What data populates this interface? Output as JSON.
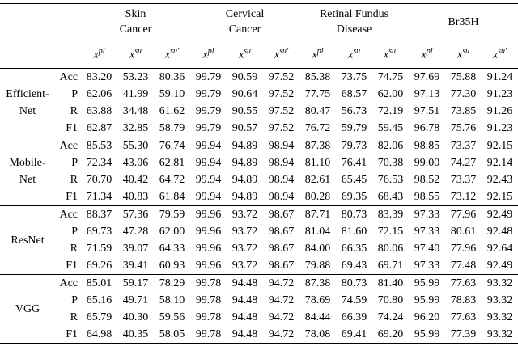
{
  "header": {
    "groups": [
      {
        "lines": [
          "Skin",
          "Cancer"
        ]
      },
      {
        "lines": [
          "Cervical",
          "Cancer"
        ]
      },
      {
        "lines": [
          "Retinal Fundus",
          "Disease"
        ]
      },
      {
        "lines": [
          "Br35H"
        ]
      }
    ],
    "sub": [
      {
        "base": "x",
        "sup": "pl"
      },
      {
        "base": "x",
        "sup": "su"
      },
      {
        "base": "x",
        "sup": "su′"
      }
    ]
  },
  "table": {
    "blocks": [
      {
        "model": [
          "Efficient-",
          "Net"
        ],
        "rows": [
          {
            "metric": "Acc",
            "values": [
              "83.20",
              "53.23",
              "80.36",
              "99.79",
              "90.59",
              "97.52",
              "85.38",
              "73.75",
              "74.75",
              "97.69",
              "75.88",
              "91.24"
            ]
          },
          {
            "metric": "P",
            "values": [
              "62.06",
              "41.99",
              "59.10",
              "99.79",
              "90.64",
              "97.52",
              "77.75",
              "68.57",
              "62.00",
              "97.13",
              "77.30",
              "91.23"
            ]
          },
          {
            "metric": "R",
            "values": [
              "63.88",
              "34.48",
              "61.62",
              "99.79",
              "90.55",
              "97.52",
              "80.47",
              "56.73",
              "72.19",
              "97.51",
              "73.85",
              "91.26"
            ]
          },
          {
            "metric": "F1",
            "values": [
              "62.87",
              "32.85",
              "58.79",
              "99.79",
              "90.57",
              "97.52",
              "76.72",
              "59.79",
              "59.45",
              "96.78",
              "75.76",
              "91.23"
            ]
          }
        ]
      },
      {
        "model": [
          "Mobile-",
          "Net"
        ],
        "rows": [
          {
            "metric": "Acc",
            "values": [
              "85.53",
              "55.30",
              "76.74",
              "99.94",
              "94.89",
              "98.94",
              "87.38",
              "79.73",
              "82.06",
              "98.85",
              "73.37",
              "92.15"
            ]
          },
          {
            "metric": "P",
            "values": [
              "72.34",
              "43.06",
              "62.81",
              "99.94",
              "94.89",
              "98.94",
              "81.10",
              "76.41",
              "70.38",
              "99.00",
              "74.27",
              "92.14"
            ]
          },
          {
            "metric": "R",
            "values": [
              "70.70",
              "40.42",
              "64.72",
              "99.94",
              "94.89",
              "98.94",
              "82.61",
              "65.45",
              "76.53",
              "98.52",
              "73.37",
              "92.43"
            ]
          },
          {
            "metric": "F1",
            "values": [
              "71.34",
              "40.83",
              "61.84",
              "99.94",
              "94.89",
              "98.94",
              "80.28",
              "69.35",
              "68.43",
              "98.55",
              "73.12",
              "92.15"
            ]
          }
        ]
      },
      {
        "model": [
          "ResNet"
        ],
        "rows": [
          {
            "metric": "Acc",
            "values": [
              "88.37",
              "57.36",
              "79.59",
              "99.96",
              "93.72",
              "98.67",
              "87.71",
              "80.73",
              "83.39",
              "97.33",
              "77.96",
              "92.49"
            ]
          },
          {
            "metric": "P",
            "values": [
              "69.73",
              "47.28",
              "62.00",
              "99.96",
              "93.72",
              "98.67",
              "81.04",
              "81.60",
              "72.15",
              "97.33",
              "80.61",
              "92.48"
            ]
          },
          {
            "metric": "R",
            "values": [
              "71.59",
              "39.07",
              "64.33",
              "99.96",
              "93.72",
              "98.67",
              "84.00",
              "66.35",
              "80.06",
              "97.40",
              "77.96",
              "92.64"
            ]
          },
          {
            "metric": "F1",
            "values": [
              "69.26",
              "39.41",
              "60.93",
              "99.96",
              "93.72",
              "98.67",
              "79.88",
              "69.43",
              "69.71",
              "97.33",
              "77.48",
              "92.49"
            ]
          }
        ]
      },
      {
        "model": [
          "VGG"
        ],
        "rows": [
          {
            "metric": "Acc",
            "values": [
              "85.01",
              "59.17",
              "78.29",
              "99.78",
              "94.48",
              "94.72",
              "87.38",
              "80.73",
              "81.40",
              "95.99",
              "77.63",
              "93.32"
            ]
          },
          {
            "metric": "P",
            "values": [
              "65.16",
              "49.71",
              "58.10",
              "99.78",
              "94.48",
              "94.72",
              "78.69",
              "74.59",
              "70.80",
              "95.99",
              "78.83",
              "93.32"
            ]
          },
          {
            "metric": "R",
            "values": [
              "65.79",
              "40.30",
              "59.56",
              "99.78",
              "94.48",
              "94.72",
              "84.44",
              "66.39",
              "74.24",
              "96.20",
              "77.63",
              "93.32"
            ]
          },
          {
            "metric": "F1",
            "values": [
              "64.98",
              "40.35",
              "58.05",
              "99.78",
              "94.48",
              "94.72",
              "78.08",
              "69.41",
              "69.20",
              "95.99",
              "77.39",
              "93.32"
            ]
          }
        ]
      }
    ]
  }
}
